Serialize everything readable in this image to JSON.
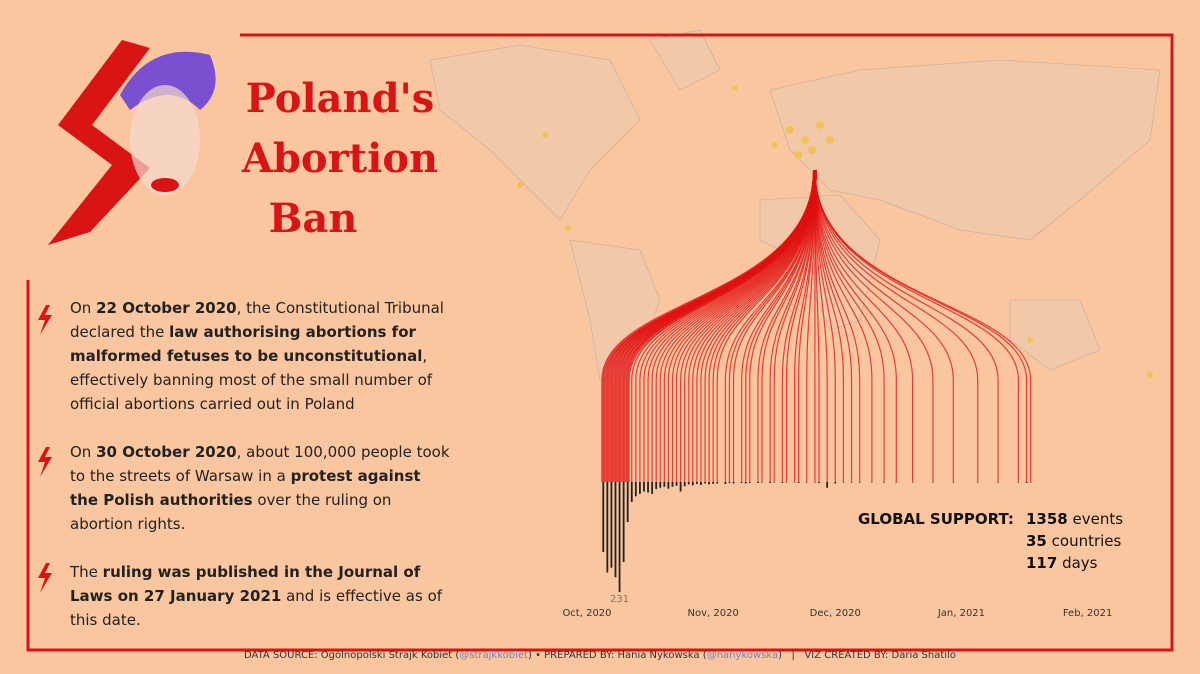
{
  "header": {
    "title": [
      "Poland's",
      "Abortion",
      "Ban"
    ]
  },
  "paragraphs": [
    [
      {
        "text": "On ",
        "bold": false
      },
      {
        "text": "22 October 2020",
        "bold": true
      },
      {
        "text": ", the Constitutional Tribunal declared the ",
        "bold": false
      },
      {
        "text": "law authorising abortions for malformed fetuses to be unconstitutional",
        "bold": true
      },
      {
        "text": ", effectively banning most of the small number of official abortions carried out in Poland",
        "bold": false
      }
    ],
    [
      {
        "text": "On ",
        "bold": false
      },
      {
        "text": "30 October 2020",
        "bold": true
      },
      {
        "text": ", about 100,000 people took to the streets of Warsaw in a ",
        "bold": false
      },
      {
        "text": "protest against the Polish authorities",
        "bold": true
      },
      {
        "text": " over the ruling on abortion rights.",
        "bold": false
      }
    ],
    [
      {
        "text": "The ",
        "bold": false
      },
      {
        "text": "ruling was published in the Journal of Laws on 27 January 2021",
        "bold": true
      },
      {
        "text": " and is effective as of this date.",
        "bold": false
      }
    ]
  ],
  "stats": {
    "label": "GLOBAL SUPPORT:",
    "items": [
      {
        "value": 1358,
        "unit": "events"
      },
      {
        "value": 35,
        "unit": "countries"
      },
      {
        "value": 117,
        "unit": "days"
      }
    ]
  },
  "footer": [
    {
      "text": "DATA SOURCE: Ogólnopolski Strajk Kobiet (",
      "handle": false
    },
    {
      "text": "@strajkkobiet",
      "handle": true
    },
    {
      "text": ") • PREPARED BY: Hania Nykowska (",
      "handle": false
    },
    {
      "text": "@hanykowska",
      "handle": true
    },
    {
      "text": ")   |   VIZ CREATED BY: Daria Shatilo",
      "handle": false
    }
  ],
  "chart_data": {
    "type": "bar",
    "color": "#222222",
    "categories": [
      "Oct, 2020",
      null,
      null,
      null,
      null,
      null,
      null,
      null,
      null,
      null,
      null,
      null,
      null,
      null,
      null,
      null,
      null,
      null,
      null,
      null,
      null,
      null,
      null,
      null,
      null,
      null,
      null,
      null,
      null,
      null,
      null,
      "Nov, 2020",
      null,
      null,
      null,
      null,
      null,
      null,
      null,
      null,
      null,
      null,
      null,
      null,
      null,
      null,
      null,
      null,
      null,
      null,
      null,
      null,
      null,
      null,
      null,
      null,
      null,
      null,
      null,
      null,
      null,
      "Dec, 2020",
      null,
      null,
      null,
      null,
      null,
      null,
      null,
      null,
      null,
      null,
      null,
      null,
      null,
      null,
      null,
      null,
      null,
      null,
      null,
      null,
      null,
      null,
      null,
      null,
      null,
      null,
      null,
      null,
      null,
      null,
      "Jan, 2021",
      null,
      null,
      null,
      null,
      null,
      null,
      null,
      null,
      null,
      null,
      null,
      null,
      null,
      null,
      null,
      null,
      null,
      null,
      null,
      null,
      null,
      null,
      null,
      null,
      null,
      null,
      null,
      null,
      null,
      null,
      "Feb, 2021",
      null,
      null,
      null,
      null,
      null,
      null,
      null
    ],
    "values": [
      null,
      null,
      null,
      null,
      147,
      190,
      180,
      200,
      231,
      168,
      84,
      42,
      30,
      25,
      20,
      22,
      25,
      15,
      12,
      10,
      14,
      10,
      8,
      20,
      9,
      5,
      7,
      4,
      6,
      3,
      5,
      4,
      3,
      null,
      4,
      2,
      3,
      null,
      2,
      3,
      2,
      null,
      2,
      1,
      null,
      2,
      1,
      null,
      2,
      1,
      null,
      1,
      2,
      null,
      1,
      null,
      1,
      2,
      null,
      12,
      null,
      3,
      null,
      1,
      null,
      1,
      null,
      1,
      null,
      null,
      1,
      null,
      null,
      1,
      null,
      null,
      1,
      null,
      null,
      null,
      1,
      null,
      null,
      null,
      null,
      1,
      null,
      null,
      null,
      null,
      1,
      null,
      null,
      null,
      null,
      null,
      1,
      null,
      null,
      null,
      null,
      1,
      null,
      null,
      null,
      null,
      1,
      null,
      2,
      1,
      null,
      null,
      null,
      null,
      null,
      null,
      null,
      null,
      null,
      null,
      null,
      null,
      null,
      null,
      null,
      null,
      null,
      null,
      null,
      null,
      null
    ],
    "value_labels": [
      null,
      null,
      null,
      null,
      null,
      null,
      null,
      null,
      "231",
      null,
      null,
      null,
      null,
      null,
      null,
      null,
      null,
      null,
      null,
      null,
      null,
      null,
      null,
      null,
      null,
      null,
      null,
      null,
      null,
      null,
      null,
      null,
      null,
      null,
      null,
      null,
      null,
      null,
      null,
      null,
      null,
      null,
      null,
      null,
      null,
      null,
      null,
      null,
      null,
      null,
      null,
      null,
      null,
      null,
      null,
      null,
      null,
      null,
      null,
      null,
      null,
      null,
      null,
      null,
      null,
      null,
      null,
      null,
      null,
      null,
      null,
      null,
      null,
      null,
      null,
      null,
      null,
      null,
      null,
      null,
      null,
      null,
      null,
      null,
      null,
      null,
      null,
      null,
      null,
      null,
      null,
      null,
      null,
      null,
      null,
      null,
      null,
      null,
      null,
      null,
      null,
      null,
      null,
      null,
      null,
      null,
      null,
      null,
      null,
      null,
      null,
      null,
      null,
      null,
      null,
      null,
      null,
      null,
      null,
      null,
      null,
      null,
      null,
      null,
      null,
      null,
      null,
      null,
      null,
      null,
      null
    ],
    "ylim": [
      0,
      231
    ]
  }
}
